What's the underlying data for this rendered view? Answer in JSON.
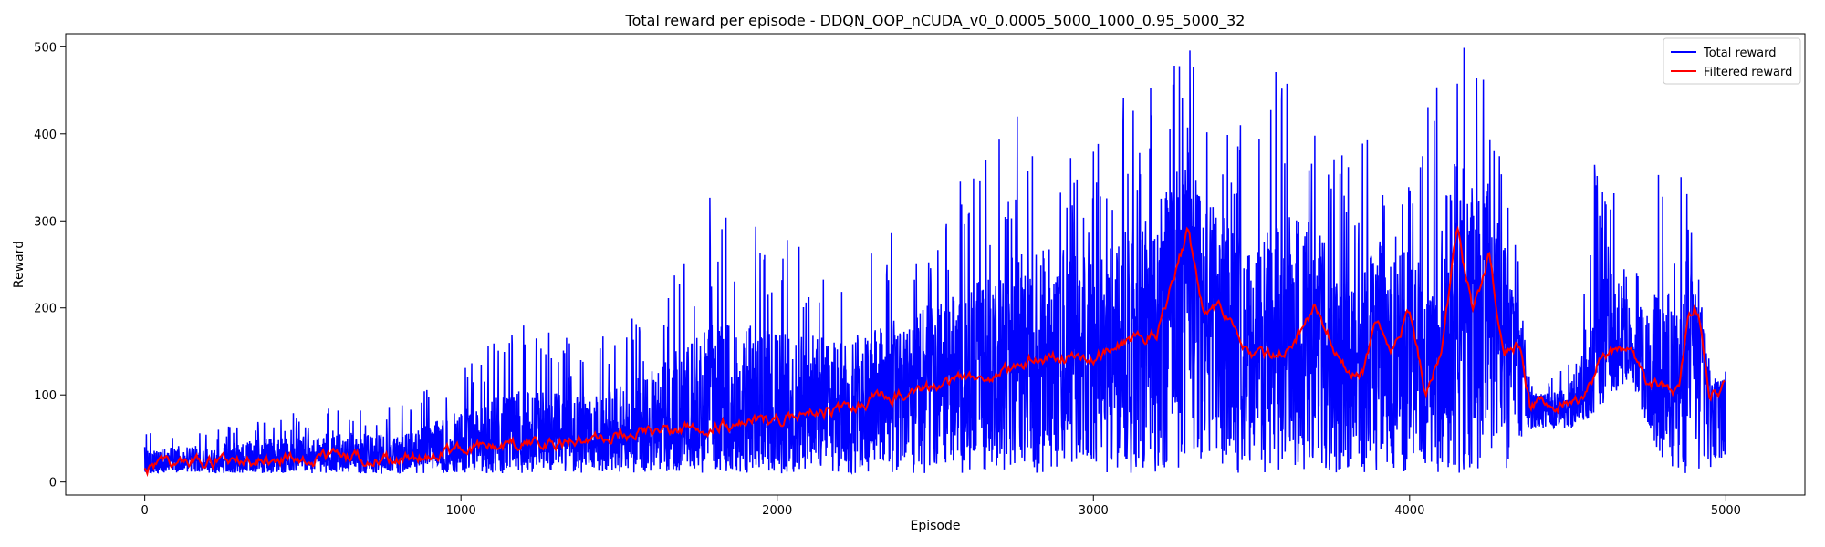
{
  "chart_data": {
    "type": "line",
    "title": "Total reward per episode - DDQN_OOP_nCUDA_v0_0.0005_5000_1000_0.95_5000_32",
    "xlabel": "Episode",
    "ylabel": "Reward",
    "xlim": [
      -250,
      5250
    ],
    "ylim": [
      -15,
      515
    ],
    "x_ticks": [
      0,
      1000,
      2000,
      3000,
      4000,
      5000
    ],
    "y_ticks": [
      0,
      100,
      200,
      300,
      400,
      500
    ],
    "grid": false,
    "legend_position": "top-right",
    "episodes": [
      0,
      4999
    ],
    "series": [
      {
        "name": "Total reward",
        "color": "#0000ff",
        "envelope_x": [
          0,
          200,
          400,
          600,
          800,
          1000,
          1200,
          1400,
          1600,
          1800,
          2000,
          2200,
          2400,
          2600,
          2800,
          3000,
          3200,
          3300,
          3400,
          3500,
          3600,
          3700,
          3800,
          3900,
          4000,
          4100,
          4150,
          4200,
          4300,
          4380,
          4500,
          4600,
          4700,
          4800,
          4880,
          4950,
          4999
        ],
        "envelope_min": [
          10,
          10,
          10,
          10,
          10,
          10,
          10,
          10,
          10,
          10,
          10,
          10,
          10,
          10,
          10,
          10,
          10,
          10,
          10,
          10,
          10,
          10,
          10,
          10,
          10,
          10,
          10,
          10,
          10,
          60,
          60,
          80,
          120,
          10,
          10,
          10,
          30
        ],
        "envelope_max": [
          60,
          65,
          80,
          95,
          85,
          140,
          185,
          160,
          210,
          340,
          300,
          260,
          300,
          355,
          450,
          390,
          500,
          500,
          470,
          430,
          500,
          420,
          380,
          400,
          360,
          500,
          500,
          500,
          420,
          120,
          130,
          410,
          270,
          380,
          350,
          130,
          130
        ]
      },
      {
        "name": "Filtered reward",
        "color": "#ff0000",
        "x": [
          0,
          100,
          200,
          300,
          400,
          500,
          600,
          700,
          800,
          900,
          1000,
          1100,
          1200,
          1300,
          1400,
          1500,
          1600,
          1700,
          1800,
          1900,
          2000,
          2100,
          2200,
          2300,
          2400,
          2500,
          2600,
          2700,
          2800,
          2900,
          3000,
          3100,
          3200,
          3300,
          3350,
          3400,
          3500,
          3600,
          3650,
          3700,
          3800,
          3850,
          3900,
          3950,
          4000,
          4050,
          4100,
          4150,
          4170,
          4200,
          4250,
          4300,
          4350,
          4380,
          4450,
          4500,
          4550,
          4600,
          4650,
          4700,
          4750,
          4800,
          4850,
          4880,
          4900,
          4920,
          4950,
          5000
        ],
        "y": [
          15,
          25,
          22,
          24,
          25,
          25,
          30,
          27,
          27,
          30,
          38,
          42,
          45,
          45,
          48,
          52,
          58,
          62,
          65,
          70,
          72,
          78,
          82,
          95,
          100,
          110,
          120,
          125,
          140,
          145,
          145,
          160,
          170,
          290,
          190,
          200,
          140,
          150,
          170,
          200,
          130,
          125,
          185,
          150,
          200,
          100,
          150,
          290,
          250,
          200,
          260,
          150,
          160,
          90,
          85,
          90,
          90,
          140,
          150,
          160,
          110,
          110,
          105,
          190,
          200,
          180,
          100,
          110
        ]
      }
    ]
  }
}
